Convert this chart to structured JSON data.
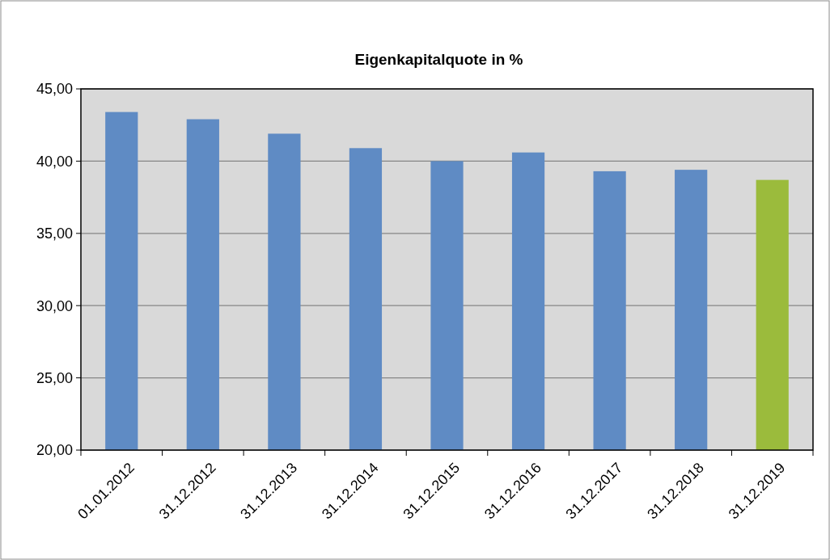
{
  "chart_data": {
    "type": "bar",
    "title": "Eigenkapitalquote in %",
    "categories": [
      "01.01.2012",
      "31.12.2012",
      "31.12.2013",
      "31.12.2014",
      "31.12.2015",
      "31.12.2016",
      "31.12.2017",
      "31.12.2018",
      "31.12.2019"
    ],
    "values": [
      43.4,
      42.9,
      41.9,
      40.9,
      40.0,
      40.6,
      39.3,
      39.4,
      38.7
    ],
    "colors": [
      "#5f8bc4",
      "#5f8bc4",
      "#5f8bc4",
      "#5f8bc4",
      "#5f8bc4",
      "#5f8bc4",
      "#5f8bc4",
      "#5f8bc4",
      "#9bbb3c"
    ],
    "ylim": [
      20,
      45
    ],
    "yticks": [
      {
        "value": 20,
        "label": "20,00"
      },
      {
        "value": 25,
        "label": "25,00"
      },
      {
        "value": 30,
        "label": "30,00"
      },
      {
        "value": 35,
        "label": "35,00"
      },
      {
        "value": 40,
        "label": "40,00"
      },
      {
        "value": 45,
        "label": "45,00"
      }
    ],
    "grid": "y"
  }
}
